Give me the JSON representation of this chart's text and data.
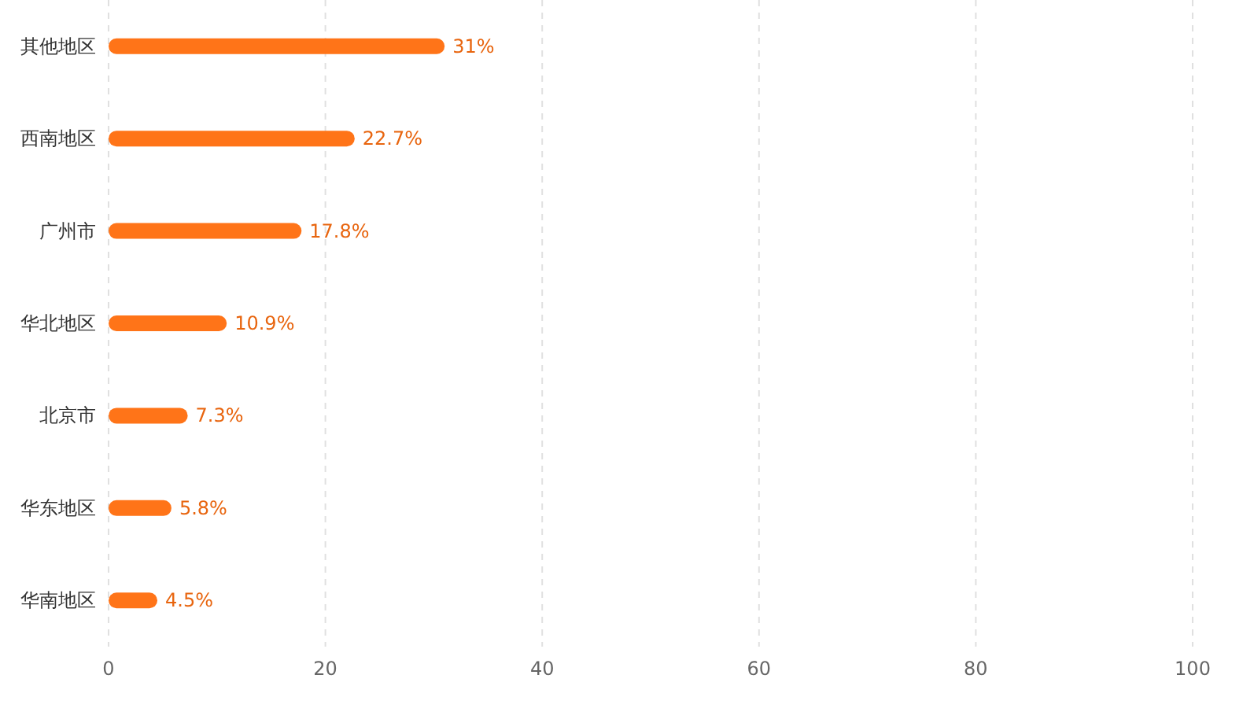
{
  "chart_data": {
    "type": "bar",
    "orientation": "horizontal",
    "categories": [
      "其他地区",
      "西南地区",
      "广州市",
      "华北地区",
      "北京市",
      "华东地区",
      "华南地区"
    ],
    "values": [
      31,
      22.7,
      17.8,
      10.9,
      7.3,
      5.8,
      4.5
    ],
    "value_labels": [
      "31%",
      "22.7%",
      "17.8%",
      "10.9%",
      "7.3%",
      "5.8%",
      "4.5%"
    ],
    "color": "#ff7418",
    "xlim": [
      0,
      100
    ],
    "xticks": [
      0,
      20,
      40,
      60,
      80,
      100
    ],
    "grid": "x"
  }
}
